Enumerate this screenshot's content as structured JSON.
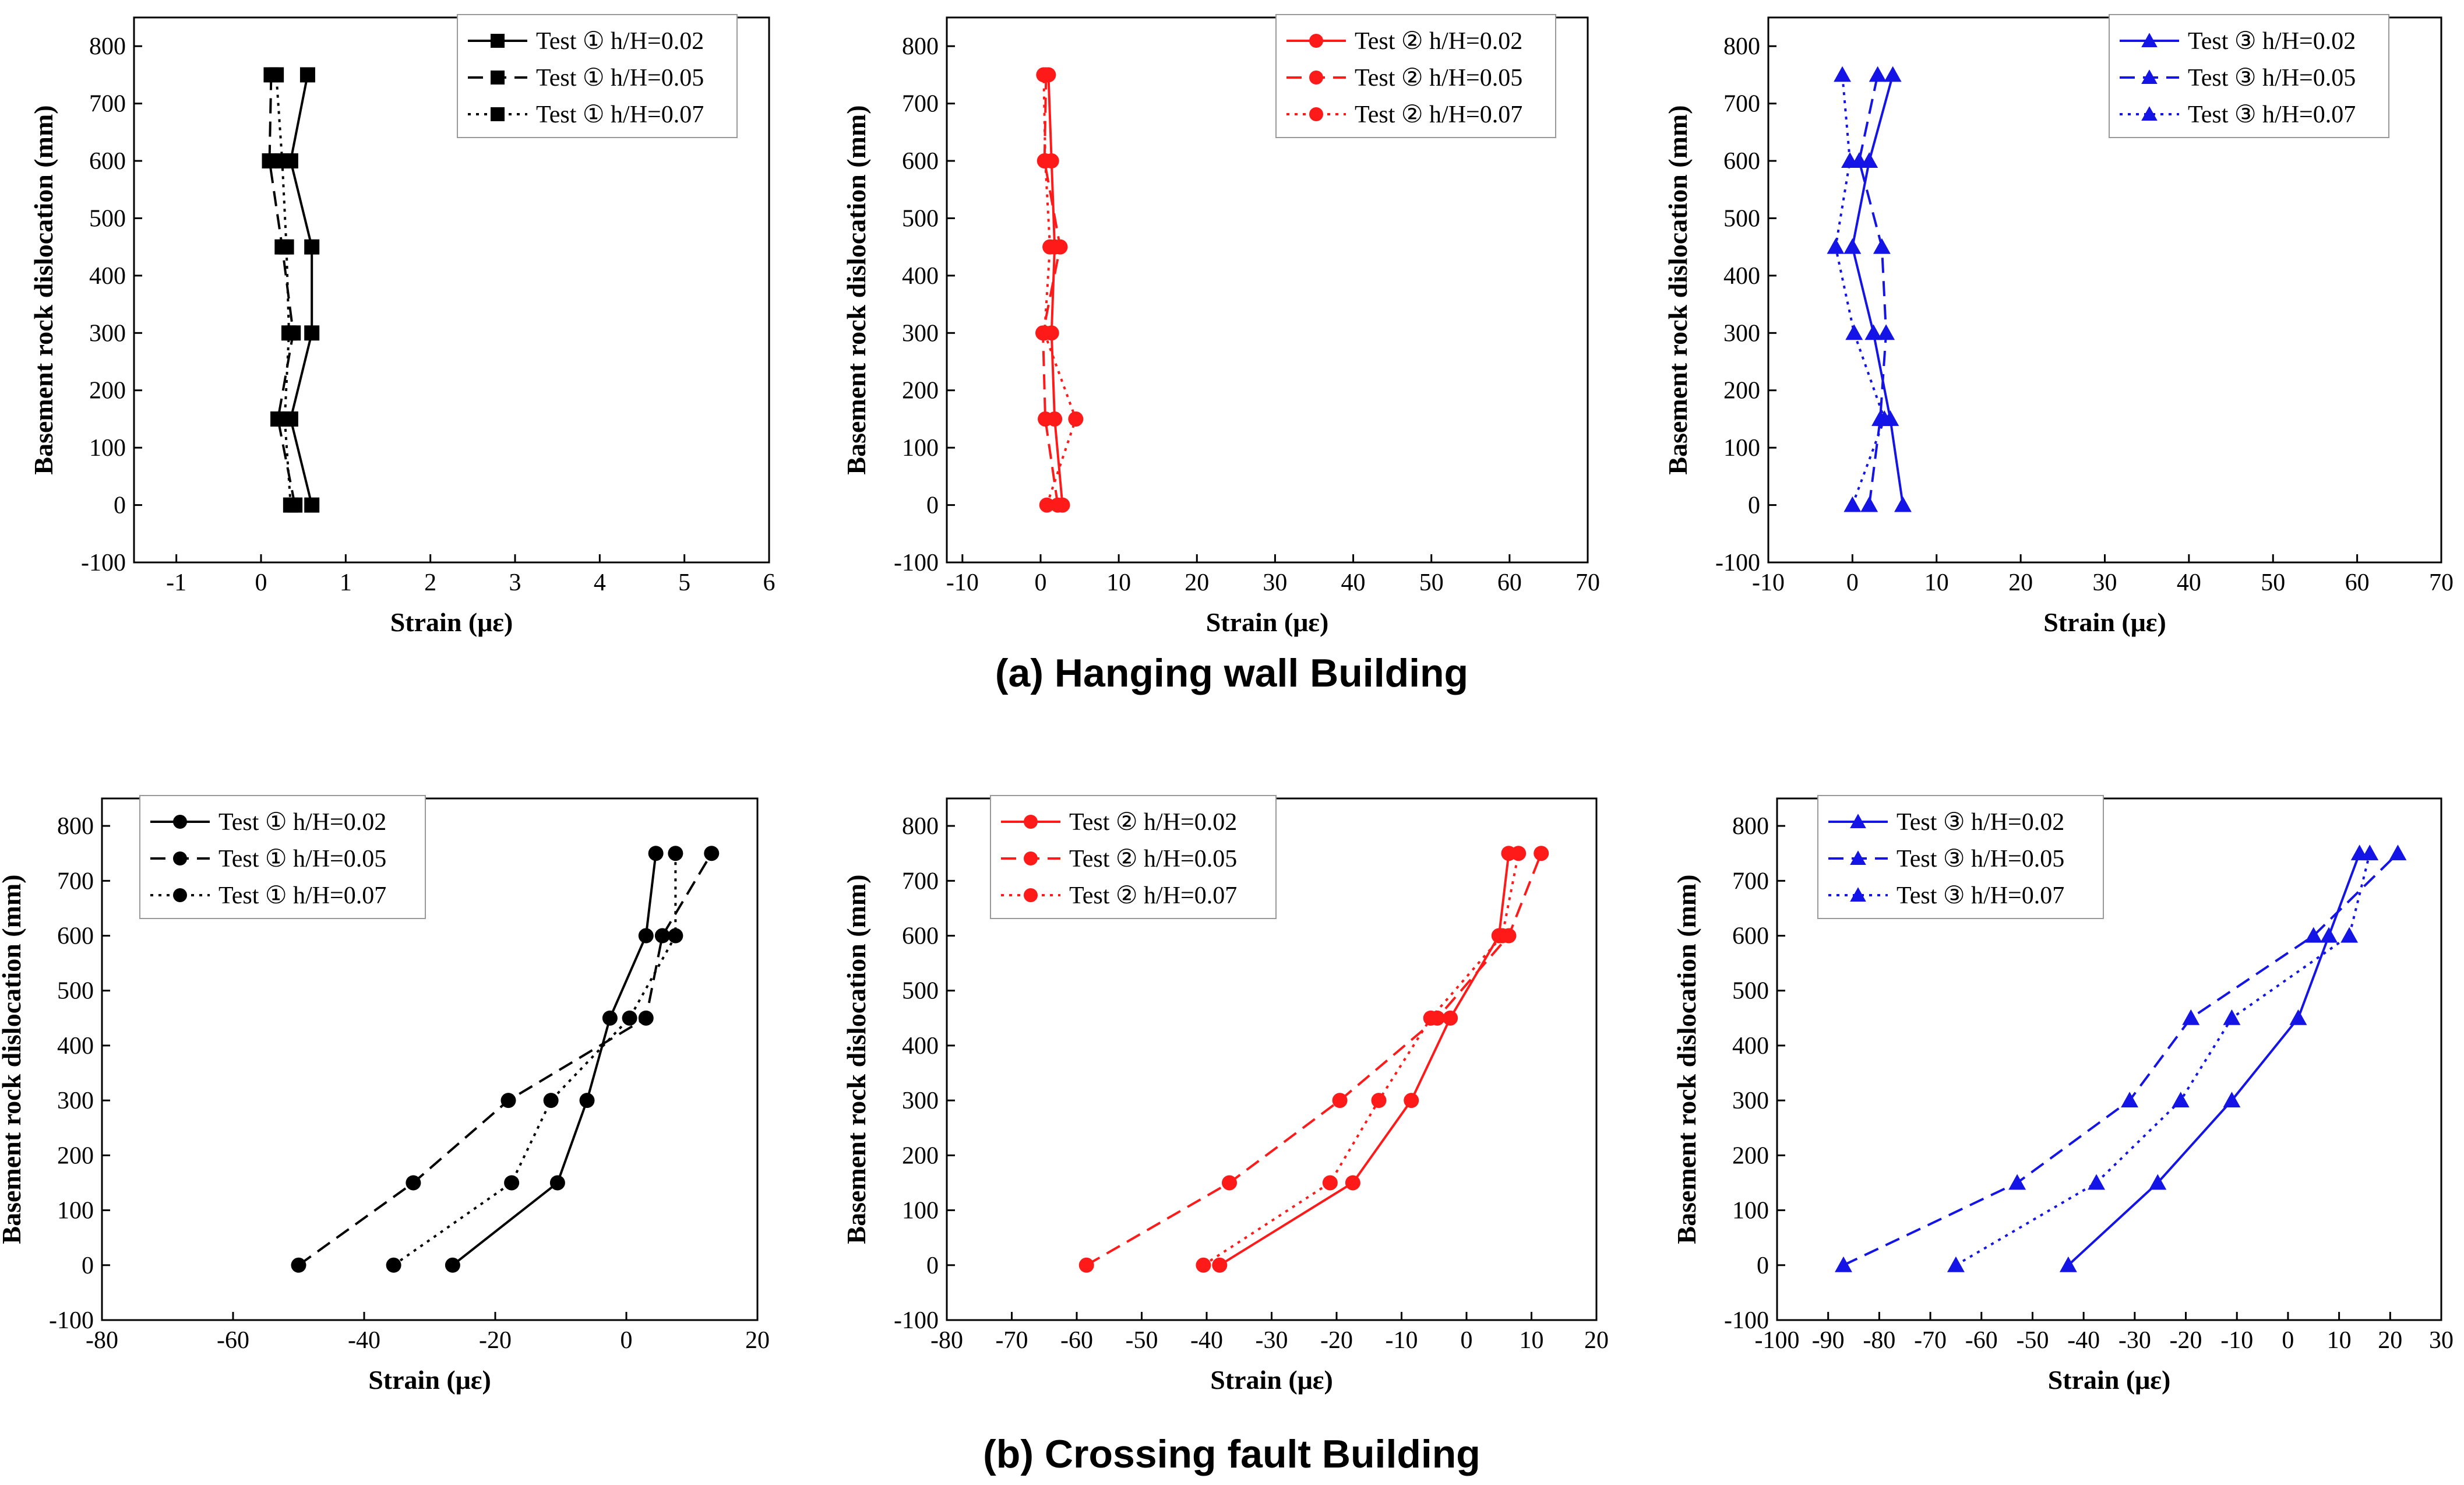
{
  "captions": {
    "a": "(a)  Hanging wall Building",
    "b": "(b)  Crossing fault Building"
  },
  "colors": {
    "black": "#000000",
    "red": "#ff1a1a",
    "blue": "#1414e6"
  },
  "chart_data": [
    {
      "type": "line",
      "panel": "a",
      "orientation": "y-categories",
      "xlabel": "Strain (με)",
      "ylabel": "Basement rock dislocation (mm)",
      "xlim": [
        -1.5,
        6
      ],
      "ylim": [
        -100,
        850
      ],
      "xticks": [
        -1,
        0,
        1,
        2,
        3,
        4,
        5,
        6
      ],
      "yticks": [
        -100,
        0,
        100,
        200,
        300,
        400,
        500,
        600,
        700,
        800
      ],
      "marker": "square",
      "color": "#000000",
      "legend_position": "top-right",
      "y": [
        0,
        150,
        300,
        450,
        600,
        750
      ],
      "series": [
        {
          "name": "Test ① h/H=0.02",
          "dash": "solid",
          "x": [
            0.6,
            0.35,
            0.6,
            0.6,
            0.35,
            0.55
          ]
        },
        {
          "name": "Test ① h/H=0.05",
          "dash": "dashed",
          "x": [
            0.4,
            0.2,
            0.38,
            0.25,
            0.1,
            0.12
          ]
        },
        {
          "name": "Test ① h/H=0.07",
          "dash": "dotted",
          "x": [
            0.35,
            0.28,
            0.33,
            0.3,
            0.25,
            0.18
          ]
        }
      ]
    },
    {
      "type": "line",
      "panel": "a",
      "orientation": "y-categories",
      "xlabel": "Strain (με)",
      "ylabel": "Basement rock dislocation (mm)",
      "xlim": [
        -12,
        70
      ],
      "ylim": [
        -100,
        850
      ],
      "xticks": [
        -10,
        0,
        10,
        20,
        30,
        40,
        50,
        60,
        70
      ],
      "yticks": [
        -100,
        0,
        100,
        200,
        300,
        400,
        500,
        600,
        700,
        800
      ],
      "marker": "circle",
      "color": "#ff1a1a",
      "legend_position": "top-right",
      "y": [
        0,
        150,
        300,
        450,
        600,
        750
      ],
      "series": [
        {
          "name": "Test ② h/H=0.02",
          "dash": "solid",
          "x": [
            2.8,
            1.8,
            1.4,
            1.8,
            1.4,
            1.0
          ]
        },
        {
          "name": "Test ② h/H=0.05",
          "dash": "dashed",
          "x": [
            2.2,
            0.6,
            0.3,
            2.5,
            0.5,
            0.7
          ]
        },
        {
          "name": "Test ② h/H=0.07",
          "dash": "dotted",
          "x": [
            0.8,
            4.5,
            0.5,
            1.2,
            0.6,
            0.4
          ]
        }
      ]
    },
    {
      "type": "line",
      "panel": "a",
      "orientation": "y-categories",
      "xlabel": "Strain (με)",
      "ylabel": "Basement rock dislocation (mm)",
      "xlim": [
        -10,
        70
      ],
      "ylim": [
        -100,
        850
      ],
      "xticks": [
        -10,
        0,
        10,
        20,
        30,
        40,
        50,
        60,
        70
      ],
      "yticks": [
        -100,
        0,
        100,
        200,
        300,
        400,
        500,
        600,
        700,
        800
      ],
      "marker": "triangle",
      "color": "#1414e6",
      "legend_position": "top-right",
      "y": [
        0,
        150,
        300,
        450,
        600,
        750
      ],
      "series": [
        {
          "name": "Test ③ h/H=0.02",
          "dash": "solid",
          "x": [
            6.0,
            4.5,
            2.5,
            0.0,
            2.0,
            4.8
          ]
        },
        {
          "name": "Test ③ h/H=0.05",
          "dash": "dashed",
          "x": [
            2.0,
            3.3,
            4.0,
            3.5,
            0.8,
            3.0
          ]
        },
        {
          "name": "Test ③ h/H=0.07",
          "dash": "dotted",
          "x": [
            0.0,
            3.8,
            0.2,
            -2.0,
            -0.3,
            -1.2
          ]
        }
      ]
    },
    {
      "type": "line",
      "panel": "b",
      "orientation": "y-categories",
      "xlabel": "Strain (με)",
      "ylabel": "Basement rock dislocation (mm)",
      "xlim": [
        -80,
        20
      ],
      "ylim": [
        -100,
        850
      ],
      "xticks": [
        -80,
        -60,
        -40,
        -20,
        0,
        20
      ],
      "yticks": [
        -100,
        0,
        100,
        200,
        300,
        400,
        500,
        600,
        700,
        800
      ],
      "marker": "circle",
      "color": "#000000",
      "legend_position": "top-left",
      "y": [
        0,
        150,
        300,
        450,
        600,
        750
      ],
      "series": [
        {
          "name": "Test ① h/H=0.02",
          "dash": "solid",
          "x": [
            -26.5,
            -10.5,
            -6.0,
            -2.5,
            3.0,
            4.5
          ]
        },
        {
          "name": "Test ① h/H=0.05",
          "dash": "dashed",
          "x": [
            -50.0,
            -32.5,
            -18.0,
            3.0,
            5.5,
            13.0
          ]
        },
        {
          "name": "Test ① h/H=0.07",
          "dash": "dotted",
          "x": [
            -35.5,
            -17.5,
            -11.5,
            0.5,
            7.5,
            7.5
          ]
        }
      ]
    },
    {
      "type": "line",
      "panel": "b",
      "orientation": "y-categories",
      "xlabel": "Strain (με)",
      "ylabel": "Basement rock dislocation (mm)",
      "xlim": [
        -80,
        20
      ],
      "ylim": [
        -100,
        850
      ],
      "xticks": [
        -80,
        -70,
        -60,
        -50,
        -40,
        -30,
        -20,
        -10,
        0,
        10,
        20
      ],
      "yticks": [
        -100,
        0,
        100,
        200,
        300,
        400,
        500,
        600,
        700,
        800
      ],
      "marker": "circle",
      "color": "#ff1a1a",
      "legend_position": "top-left",
      "y": [
        0,
        150,
        300,
        450,
        600,
        750
      ],
      "series": [
        {
          "name": "Test ② h/H=0.02",
          "dash": "solid",
          "x": [
            -38.0,
            -17.5,
            -8.5,
            -2.5,
            5.0,
            6.5
          ]
        },
        {
          "name": "Test ② h/H=0.05",
          "dash": "dashed",
          "x": [
            -58.5,
            -36.5,
            -19.5,
            -4.5,
            6.5,
            11.5
          ]
        },
        {
          "name": "Test ② h/H=0.07",
          "dash": "dotted",
          "x": [
            -40.5,
            -21.0,
            -13.5,
            -5.5,
            5.5,
            8.0
          ]
        }
      ]
    },
    {
      "type": "line",
      "panel": "b",
      "orientation": "y-categories",
      "xlabel": "Strain (με)",
      "ylabel": "Basement rock dislocation (mm)",
      "xlim": [
        -100,
        30
      ],
      "ylim": [
        -100,
        850
      ],
      "xticks": [
        -100,
        -90,
        -80,
        -70,
        -60,
        -50,
        -40,
        -30,
        -20,
        -10,
        0,
        10,
        20,
        30
      ],
      "yticks": [
        -100,
        0,
        100,
        200,
        300,
        400,
        500,
        600,
        700,
        800
      ],
      "marker": "triangle",
      "color": "#1414e6",
      "legend_position": "top-left",
      "y": [
        0,
        150,
        300,
        450,
        600,
        750
      ],
      "series": [
        {
          "name": "Test ③ h/H=0.02",
          "dash": "solid",
          "x": [
            -43.0,
            -25.5,
            -11.0,
            2.0,
            8.0,
            14.0
          ]
        },
        {
          "name": "Test ③ h/H=0.05",
          "dash": "dashed",
          "x": [
            -87.0,
            -53.0,
            -31.0,
            -19.0,
            5.0,
            21.5
          ]
        },
        {
          "name": "Test ③ h/H=0.07",
          "dash": "dotted",
          "x": [
            -65.0,
            -37.5,
            -21.0,
            -11.0,
            12.0,
            16.0
          ]
        }
      ]
    }
  ]
}
